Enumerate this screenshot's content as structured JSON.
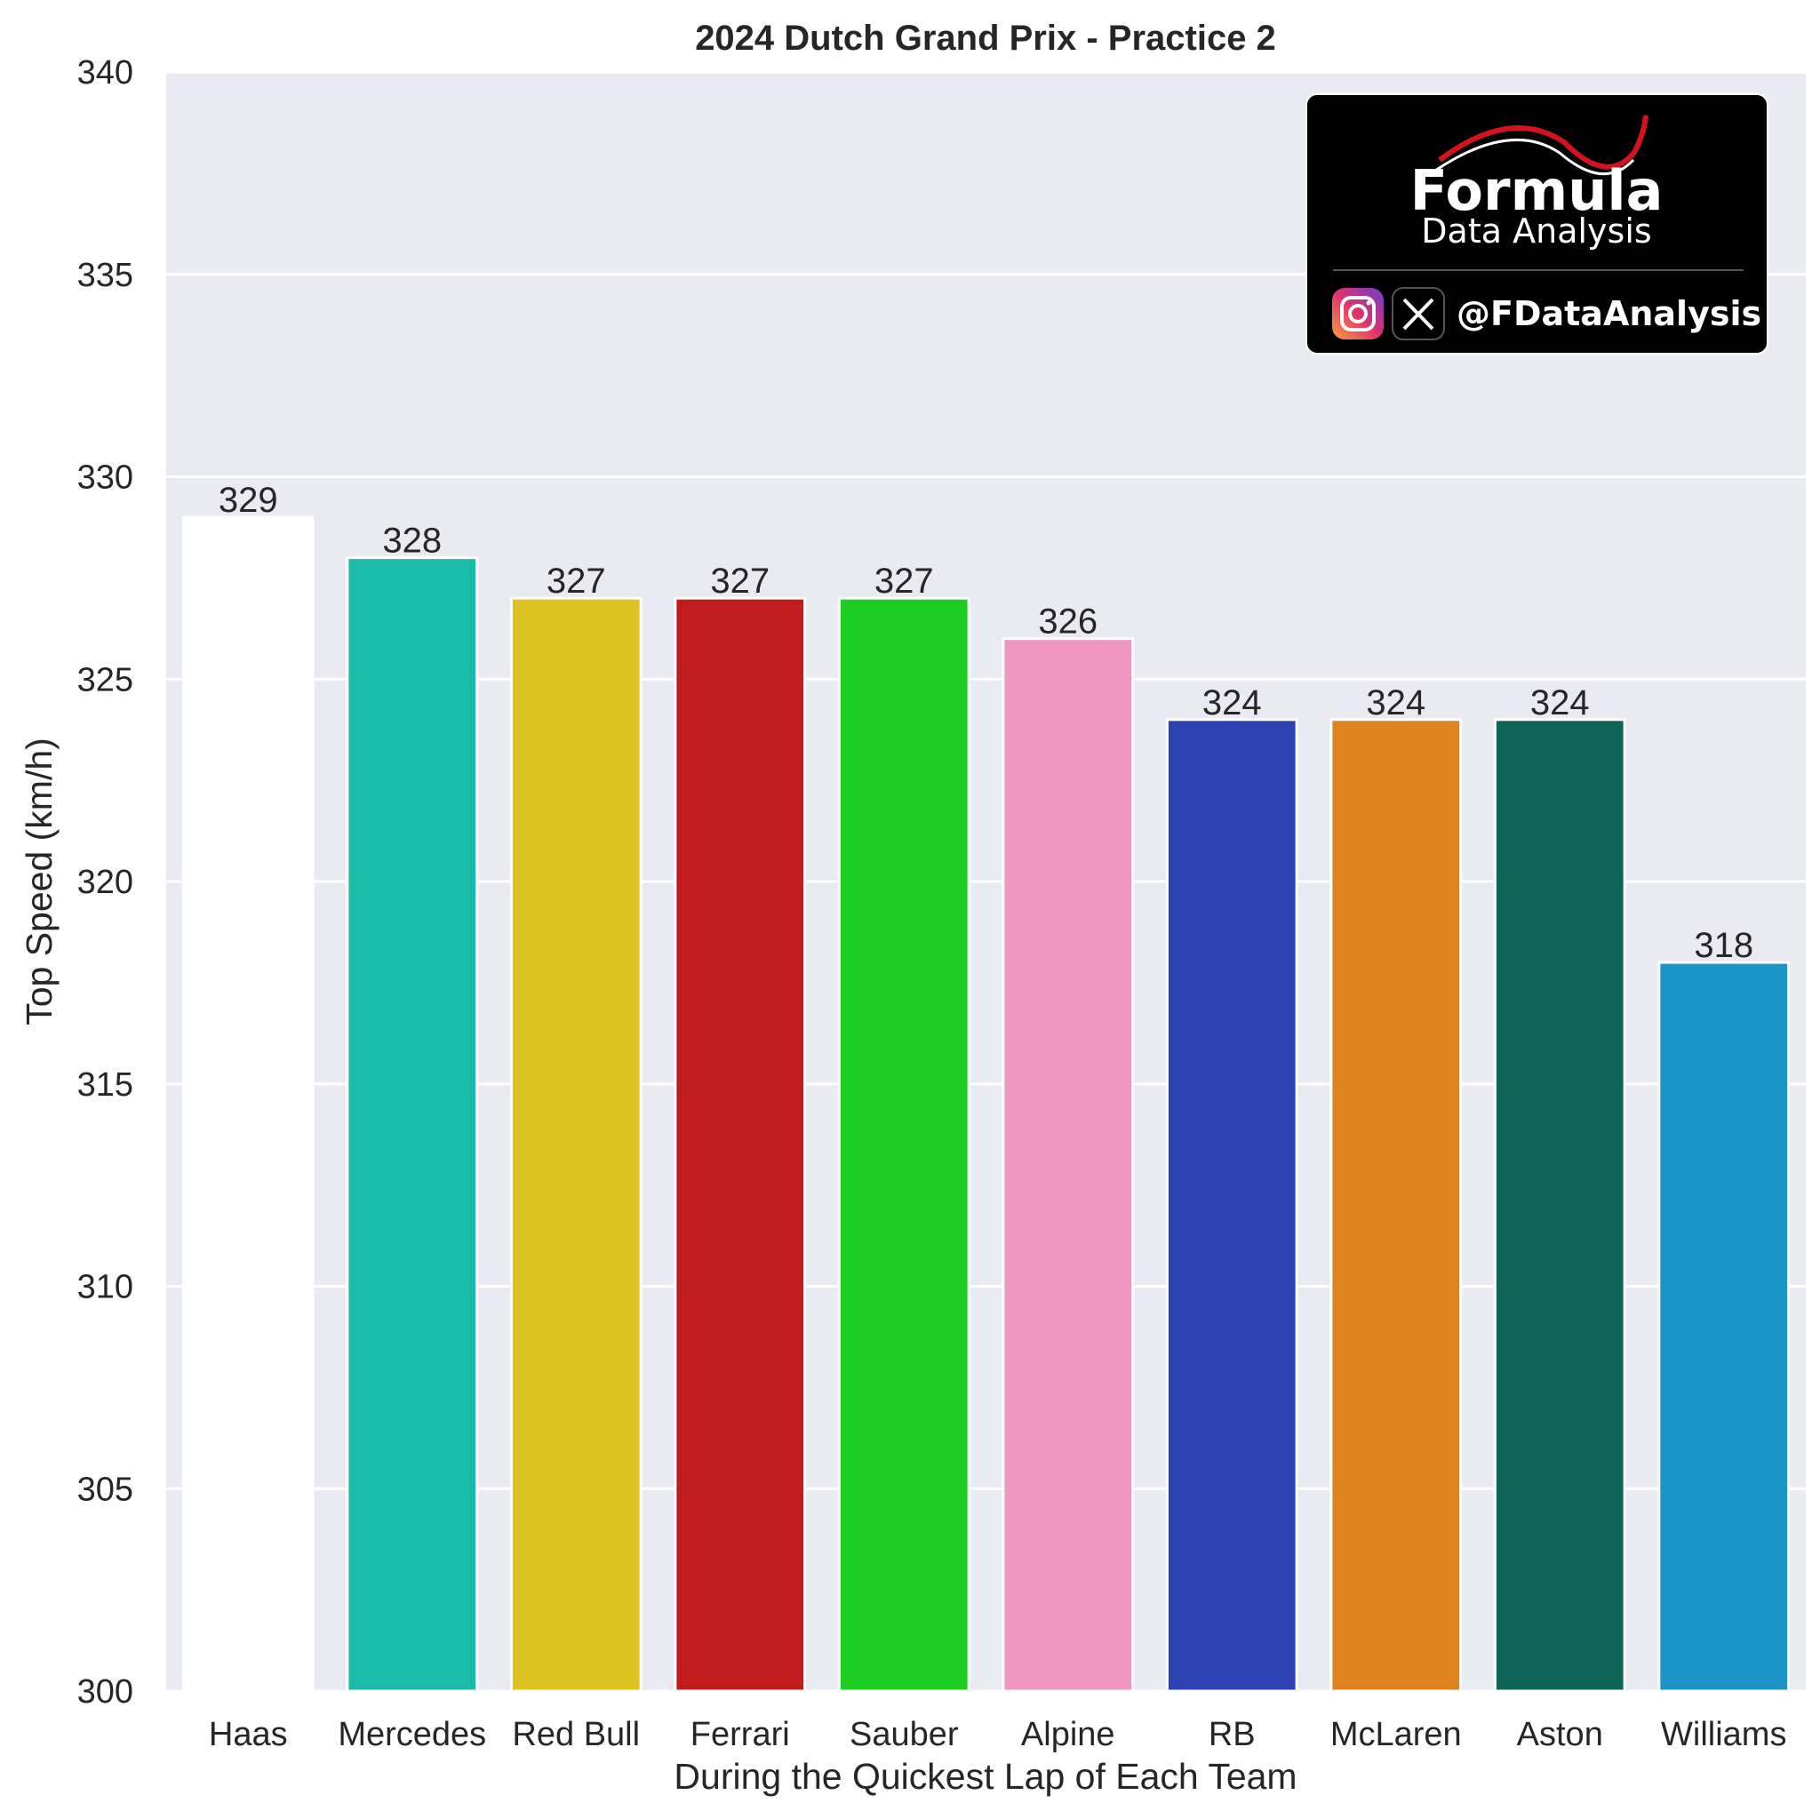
{
  "chart_data": {
    "type": "bar",
    "title": "2024 Dutch Grand Prix - Practice 2",
    "xlabel": "During the Quickest Lap of Each Team",
    "ylabel": "Top Speed (km/h)",
    "ylim": [
      300,
      340
    ],
    "yticks": [
      300,
      305,
      310,
      315,
      320,
      325,
      330,
      335,
      340
    ],
    "grid": true,
    "categories": [
      "Haas",
      "Mercedes",
      "Red Bull",
      "Ferrari",
      "Sauber",
      "Alpine",
      "RB",
      "McLaren",
      "Aston",
      "Williams"
    ],
    "values": [
      329,
      328,
      327,
      327,
      327,
      326,
      324,
      324,
      324,
      318
    ],
    "data_labels": [
      "329",
      "328",
      "327",
      "327",
      "327",
      "326",
      "324",
      "324",
      "324",
      "318"
    ],
    "colors": [
      "#ffffff",
      "#1bbaa9",
      "#ddc322",
      "#c01b1d",
      "#1ecd21",
      "#ef97bf",
      "#2d43b4",
      "#de831f",
      "#0d6457",
      "#1c95c6"
    ]
  },
  "watermark": {
    "brand": "Formula",
    "subtitle": "Data Analysis",
    "handle": "@FDataAnalysis",
    "icons": [
      "instagram-icon",
      "x-icon"
    ]
  }
}
